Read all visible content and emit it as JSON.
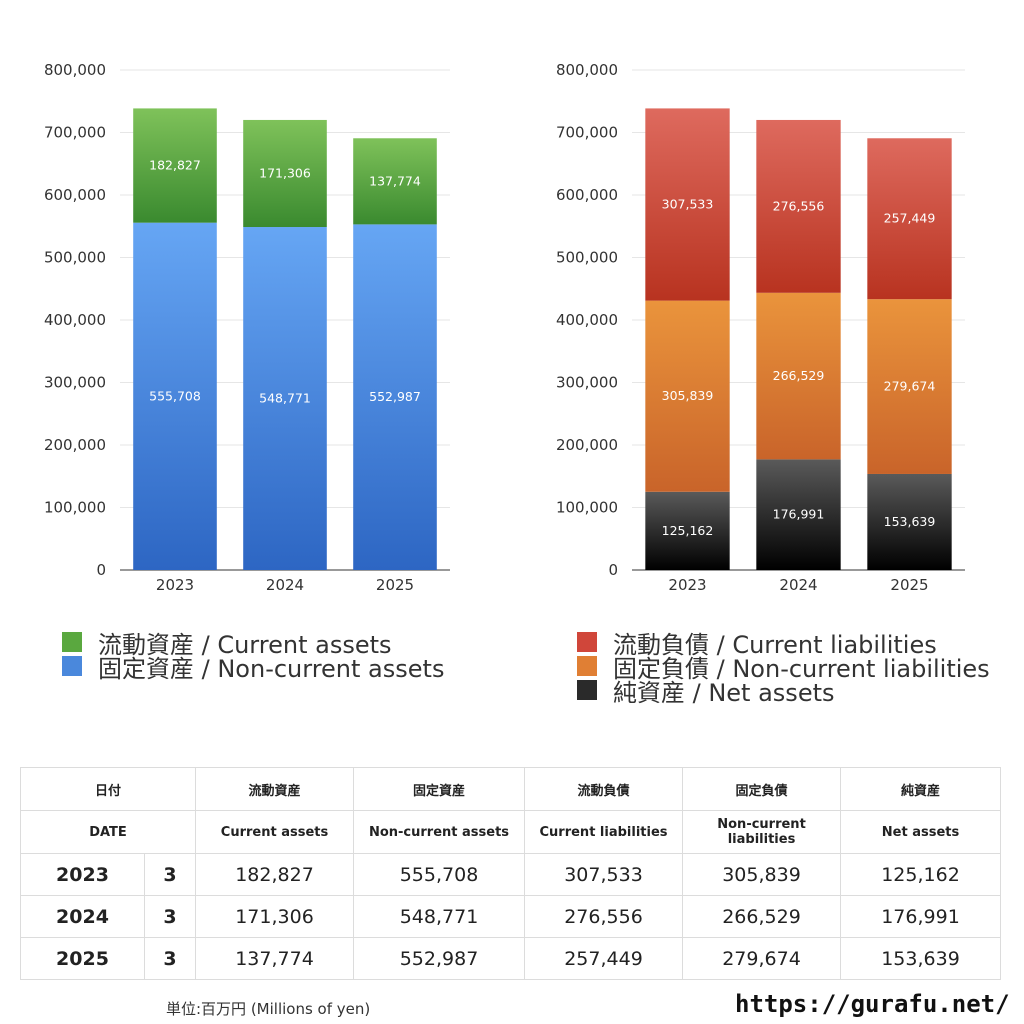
{
  "chart_data": [
    {
      "type": "bar",
      "stacked": true,
      "categories": [
        "2023",
        "2024",
        "2025"
      ],
      "ylim": [
        0,
        800000
      ],
      "yticks": [
        "0",
        "100,000",
        "200,000",
        "300,000",
        "400,000",
        "500,000",
        "600,000",
        "700,000",
        "800,000"
      ],
      "grid": true,
      "series": [
        {
          "name": "固定資産 / Non-current assets",
          "values": [
            555708,
            548771,
            552987
          ],
          "labels": [
            "555,708",
            "548,771",
            "552,987"
          ],
          "color_top": "#66a6f4",
          "color_bottom": "#2d66c3"
        },
        {
          "name": "流動資産 / Current assets",
          "values": [
            182827,
            171306,
            137774
          ],
          "labels": [
            "182,827",
            "171,306",
            "137,774"
          ],
          "color_top": "#7fc25a",
          "color_bottom": "#3a8a2f"
        }
      ]
    },
    {
      "type": "bar",
      "stacked": true,
      "categories": [
        "2023",
        "2024",
        "2025"
      ],
      "ylim": [
        0,
        800000
      ],
      "yticks": [
        "0",
        "100,000",
        "200,000",
        "300,000",
        "400,000",
        "500,000",
        "600,000",
        "700,000",
        "800,000"
      ],
      "grid": true,
      "series": [
        {
          "name": "純資産 / Net assets",
          "values": [
            125162,
            176991,
            153639
          ],
          "labels": [
            "125,162",
            "176,991",
            "153,639"
          ],
          "color_top": "#5a5a5a",
          "color_bottom": "#000000"
        },
        {
          "name": "固定負債 / Non-current liabilities",
          "values": [
            305839,
            266529,
            279674
          ],
          "labels": [
            "305,839",
            "266,529",
            "279,674"
          ],
          "color_top": "#ea943c",
          "color_bottom": "#c9642a"
        },
        {
          "name": "流動負債 / Current liabilities",
          "values": [
            307533,
            276556,
            257449
          ],
          "labels": [
            "307,533",
            "276,556",
            "257,449"
          ],
          "color_top": "#de6a5e",
          "color_bottom": "#b83320"
        }
      ]
    }
  ],
  "legend_assets": [
    {
      "label": "流動資産 / Current assets",
      "color": "#5aa83f"
    },
    {
      "label": "固定資産 / Non-current assets",
      "color": "#4a88dc"
    }
  ],
  "legend_liab": [
    {
      "label": "流動負債 / Current liabilities",
      "color": "#d0463a"
    },
    {
      "label": "固定負債 / Non-current liabilities",
      "color": "#e07f34"
    },
    {
      "label": "純資産 / Net assets",
      "color": "#2a2a2a"
    }
  ],
  "table": {
    "header_ja": [
      "日付",
      "流動資産",
      "固定資産",
      "流動負債",
      "固定負債",
      "純資産"
    ],
    "header_en": [
      "DATE",
      "Current assets",
      "Non-current assets",
      "Current liabilities",
      "Non-current liabilities",
      "Net assets"
    ],
    "rows": [
      {
        "year": "2023",
        "month": "3",
        "values": [
          "182,827",
          "555,708",
          "307,533",
          "305,839",
          "125,162"
        ]
      },
      {
        "year": "2024",
        "month": "3",
        "values": [
          "171,306",
          "548,771",
          "276,556",
          "266,529",
          "176,991"
        ]
      },
      {
        "year": "2025",
        "month": "3",
        "values": [
          "137,774",
          "552,987",
          "257,449",
          "279,674",
          "153,639"
        ]
      }
    ]
  },
  "unit_note": "単位:百万円 (Millions of yen)",
  "site_url": "https://gurafu.net/"
}
